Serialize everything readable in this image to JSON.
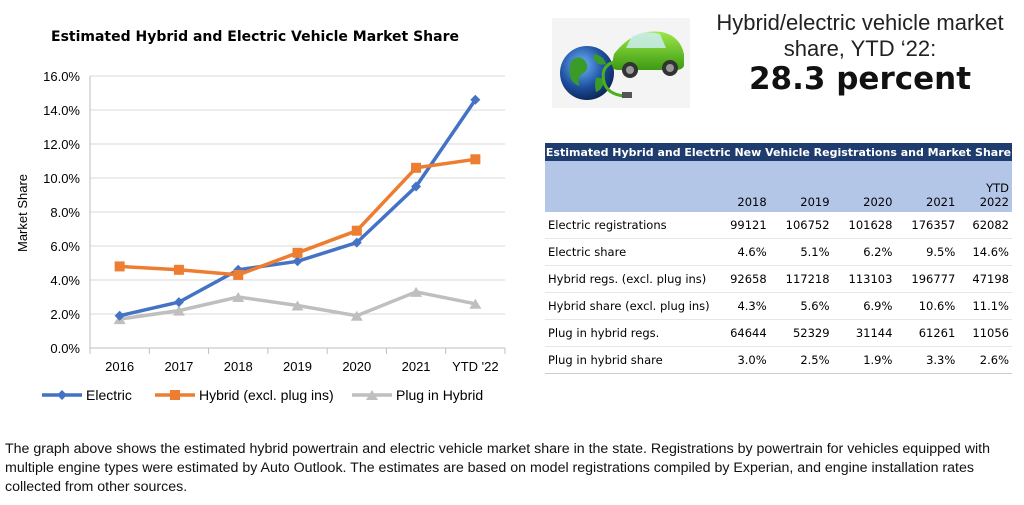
{
  "chart_data": {
    "type": "line",
    "title": "Estimated Hybrid and Electric Vehicle Market Share",
    "ylabel": "Market Share",
    "xlabel": "",
    "categories": [
      "2016",
      "2017",
      "2018",
      "2019",
      "2020",
      "2021",
      "YTD '22"
    ],
    "y_ticks": [
      "0.0%",
      "2.0%",
      "4.0%",
      "6.0%",
      "8.0%",
      "10.0%",
      "12.0%",
      "14.0%",
      "16.0%"
    ],
    "ylim": [
      0,
      16
    ],
    "grid": "horizontal",
    "legend_position": "bottom",
    "series": [
      {
        "name": "Electric",
        "color": "#4472c4",
        "marker": "diamond",
        "values": [
          1.9,
          2.7,
          4.6,
          5.1,
          6.2,
          9.5,
          14.6
        ]
      },
      {
        "name": "Hybrid (excl. plug ins)",
        "color": "#ed7d31",
        "marker": "square",
        "values": [
          4.8,
          4.6,
          4.3,
          5.6,
          6.9,
          10.6,
          11.1
        ]
      },
      {
        "name": "Plug in Hybrid",
        "color": "#bfbfbf",
        "marker": "triangle",
        "values": [
          1.7,
          2.2,
          3.0,
          2.5,
          1.9,
          3.3,
          2.6
        ]
      }
    ]
  },
  "logo": {
    "icon": "globe-and-electric-car-icon"
  },
  "headline": {
    "line1": "Hybrid/electric vehicle market",
    "line2": "share, YTD ‘22:",
    "value": "28.3 percent"
  },
  "table": {
    "title": "Estimated Hybrid and Electric New Vehicle Registrations and Market Share",
    "columns": [
      {
        "top": "",
        "bottom": "2018"
      },
      {
        "top": "",
        "bottom": "2019"
      },
      {
        "top": "",
        "bottom": "2020"
      },
      {
        "top": "",
        "bottom": "2021"
      },
      {
        "top": "YTD",
        "bottom": "2022"
      }
    ],
    "rows": [
      {
        "label": "Electric registrations",
        "values": [
          "99121",
          "106752",
          "101628",
          "176357",
          "62082"
        ]
      },
      {
        "label": "Electric share",
        "values": [
          "4.6%",
          "5.1%",
          "6.2%",
          "9.5%",
          "14.6%"
        ]
      },
      {
        "label": "Hybrid regs. (excl. plug ins)",
        "values": [
          "92658",
          "117218",
          "113103",
          "196777",
          "47198"
        ]
      },
      {
        "label": "Hybrid share (excl. plug ins)",
        "values": [
          "4.3%",
          "5.6%",
          "6.9%",
          "10.6%",
          "11.1%"
        ]
      },
      {
        "label": "Plug in hybrid regs.",
        "values": [
          "64644",
          "52329",
          "31144",
          "61261",
          "11056"
        ]
      },
      {
        "label": "Plug in hybrid share",
        "values": [
          "3.0%",
          "2.5%",
          "1.9%",
          "3.3%",
          "2.6%"
        ]
      }
    ]
  },
  "footnote": "The graph above shows the estimated hybrid powertrain and electric vehicle market share in the state. Registrations by powertrain for vehicles equipped with multiple engine types were estimated by Auto Outlook. The estimates are based on model registrations compiled by Experian, and engine installation rates collected from other sources."
}
